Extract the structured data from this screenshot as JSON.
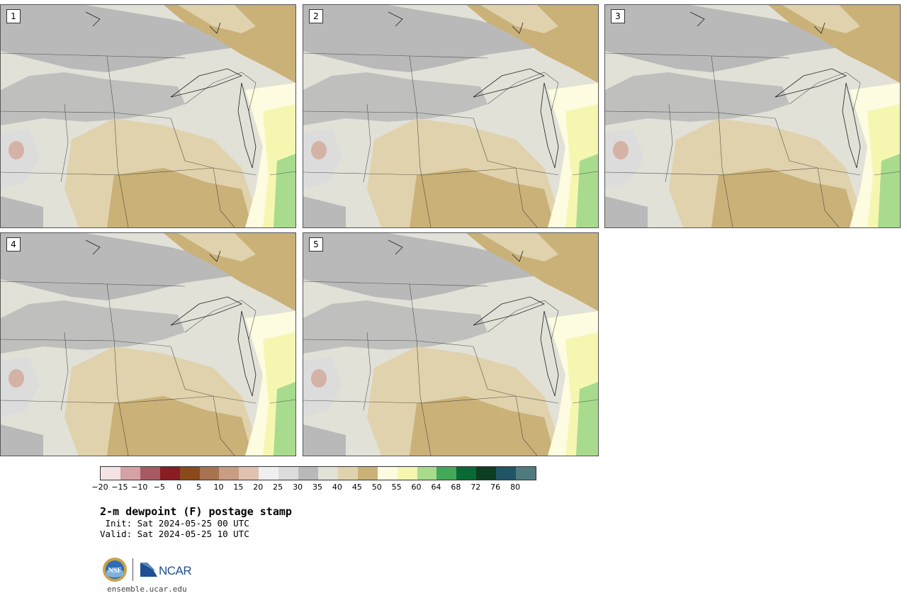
{
  "panels": [
    {
      "label": "1"
    },
    {
      "label": "2"
    },
    {
      "label": "3"
    },
    {
      "label": "4"
    },
    {
      "label": "5"
    }
  ],
  "colorbar": {
    "ticks": [
      "−20",
      "−15",
      "−10",
      "−5",
      "0",
      "5",
      "10",
      "15",
      "20",
      "25",
      "30",
      "35",
      "40",
      "45",
      "50",
      "55",
      "60",
      "64",
      "68",
      "72",
      "76",
      "80"
    ],
    "colors": [
      "#f3e3e3",
      "#d4a1a4",
      "#a85a62",
      "#8a1c24",
      "#8b4a1b",
      "#a87350",
      "#c99d84",
      "#dfc2b0",
      "#efefef",
      "#dcdcdc",
      "#b9b9b9",
      "#e2e1d8",
      "#e0d2ac",
      "#c9b178",
      "#fdfbe0",
      "#f5f7b1",
      "#a8db8e",
      "#43a85a",
      "#0a6a35",
      "#0b3e22",
      "#1f5564",
      "#4f7a7e"
    ]
  },
  "title": "2-m dewpoint (F) postage stamp",
  "init": " Init: Sat 2024-05-25 00 UTC",
  "valid": "Valid: Sat 2024-05-25 10 UTC",
  "footer": {
    "nsf_logo_text": "NSF",
    "ncar_logo_text": "NCAR",
    "website": "ensemble.ucar.edu"
  }
}
